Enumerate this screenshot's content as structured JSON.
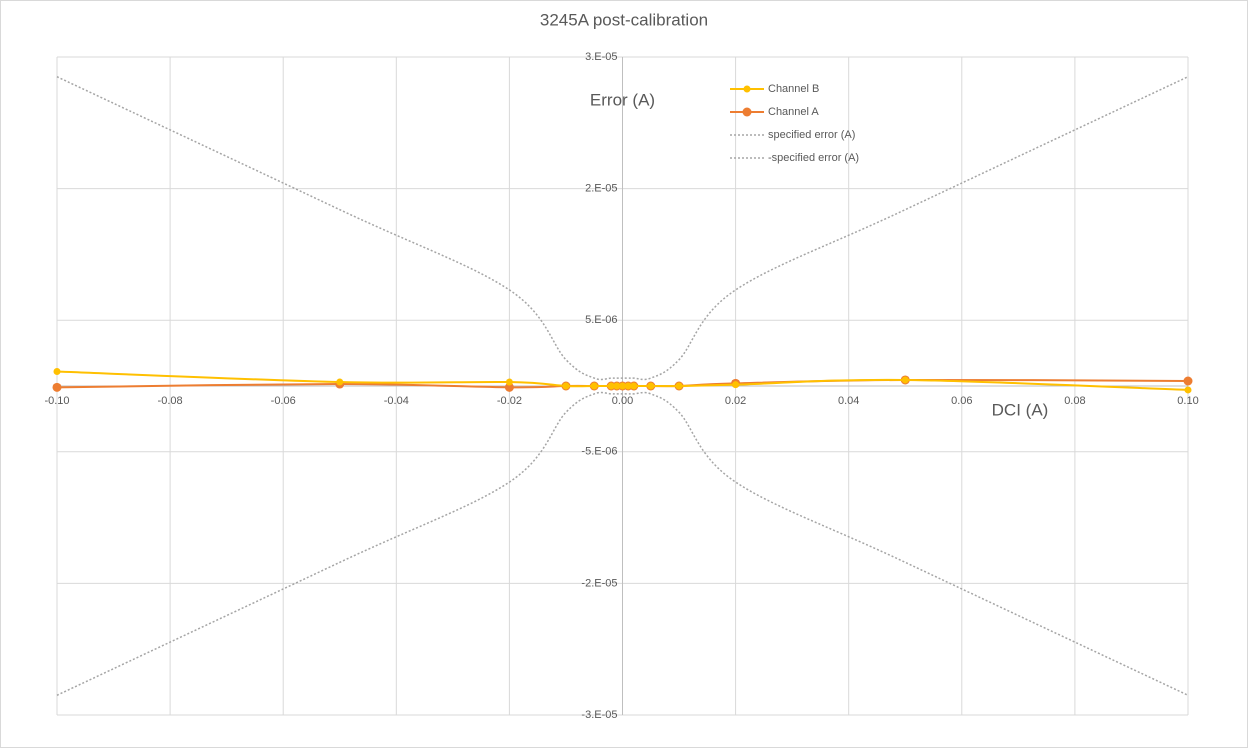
{
  "chart_data": {
    "type": "line",
    "title": "3245A post-calibration",
    "x_label": "DCI (A)",
    "y_label": "Error (A)",
    "x": [
      -0.1,
      -0.05,
      -0.02,
      -0.01,
      -0.005,
      -0.002,
      -0.001,
      0,
      0.001,
      0.002,
      0.005,
      0.01,
      0.02,
      0.05,
      0.1
    ],
    "series": [
      {
        "name": "Channel B",
        "color": "#ffc000",
        "marker": true,
        "dash": "solid",
        "values": [
          1.1e-06,
          3e-07,
          3e-07,
          0,
          0,
          0,
          0,
          0,
          0,
          0,
          0,
          0,
          1e-07,
          4.6e-07,
          -3e-07
        ]
      },
      {
        "name": "Channel A",
        "color": "#ed7d31",
        "marker": true,
        "dash": "solid",
        "values": [
          -1e-07,
          1.5e-07,
          -1e-07,
          0,
          0,
          0,
          0,
          0,
          0,
          0,
          0,
          0,
          2e-07,
          4.6e-07,
          3.8e-07
        ]
      },
      {
        "name": "specified error (A)",
        "color": "#a5a5a5",
        "marker": false,
        "dash": "dotted",
        "values": [
          2.35e-05,
          1.34e-05,
          7.3e-06,
          2e-06,
          6e-07,
          6e-07,
          6e-07,
          6e-07,
          6e-07,
          6e-07,
          6e-07,
          2e-06,
          7.3e-06,
          1.34e-05,
          2.35e-05
        ]
      },
      {
        "name": "-specified error (A)",
        "color": "#a5a5a5",
        "marker": false,
        "dash": "dotted",
        "values": [
          -2.35e-05,
          -1.34e-05,
          -7.3e-06,
          -2e-06,
          -6e-07,
          -6e-07,
          -6e-07,
          -6e-07,
          -6e-07,
          -6e-07,
          -6e-07,
          -2e-06,
          -7.3e-06,
          -1.34e-05,
          -2.35e-05
        ]
      }
    ],
    "xlim": [
      -0.1,
      0.1
    ],
    "xticks": [
      {
        "value": -0.1,
        "label": "-0.10"
      },
      -0.08,
      -0.06,
      -0.04,
      -0.02,
      {
        "value": 0,
        "label": "0.00"
      },
      0.02,
      0.04,
      0.06,
      0.08,
      {
        "value": 0.1,
        "label": "0.10"
      }
    ],
    "ylim": [
      -2.5e-05,
      2.5e-05
    ],
    "yticks": [
      {
        "value": 2.5e-05,
        "label": "3.E-05"
      },
      {
        "value": 1.5e-05,
        "label": "2.E-05"
      },
      {
        "value": 5e-06,
        "label": "5.E-06"
      },
      {
        "value": -5e-06,
        "label": "-5.E-06"
      },
      {
        "value": -1.5e-05,
        "label": "-2.E-05"
      },
      {
        "value": -2.5e-05,
        "label": "-3.E-05"
      }
    ],
    "grid": true,
    "legend": "top-right"
  }
}
